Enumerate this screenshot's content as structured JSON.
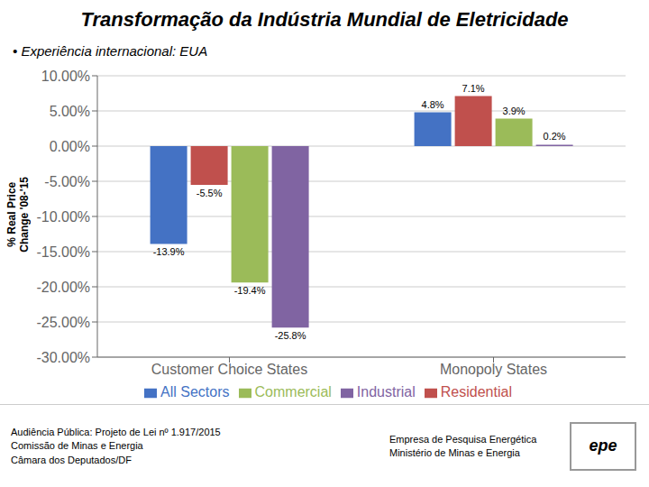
{
  "chart_data": {
    "type": "bar",
    "title": "Transformação da Indústria Mundial de Eletricidade",
    "subtitle": "• Experiência internacional: EUA",
    "ylabel": "% Real Price\nChange '08-'15",
    "categories": [
      "Customer Choice States",
      "Monopoly States"
    ],
    "series": [
      {
        "name": "All Sectors",
        "color": "#4472C4",
        "values": [
          -13.9,
          4.8
        ],
        "value_labels": [
          "-13.9%",
          "4.8%"
        ]
      },
      {
        "name": "Residential",
        "color": "#C0504D",
        "values": [
          -5.5,
          7.1
        ],
        "value_labels": [
          "-5.5%",
          "7.1%"
        ]
      },
      {
        "name": "Commercial",
        "color": "#9BBB59",
        "values": [
          -19.4,
          3.9
        ],
        "value_labels": [
          "-19.4%",
          "3.9%"
        ]
      },
      {
        "name": "Industrial",
        "color": "#8064A2",
        "values": [
          -25.8,
          0.2
        ],
        "value_labels": [
          "-25.8%",
          "0.2%"
        ]
      }
    ],
    "ylim": [
      -30,
      10
    ],
    "yticks": [
      {
        "value": 10,
        "label": "10.00%"
      },
      {
        "value": 5,
        "label": "5.00%"
      },
      {
        "value": 0,
        "label": "0.00%"
      },
      {
        "value": -5,
        "label": "-5.00%"
      },
      {
        "value": -10,
        "label": "-10.00%"
      },
      {
        "value": -15,
        "label": "-15.00%"
      },
      {
        "value": -20,
        "label": "-20.00%"
      },
      {
        "value": -25,
        "label": "-25.00%"
      },
      {
        "value": -30,
        "label": "-30.00%"
      }
    ],
    "grid": true,
    "legend": "bottom",
    "data_labels": true,
    "annotations": [
      "Audiência Pública: Projeto de Lei nº 1.917/2015\nComissão de Minas e Energia\nCâmara dos Deputados/DF",
      "Empresa de Pesquisa Energética\nMinistério de Minas e Energia",
      "epe"
    ]
  }
}
